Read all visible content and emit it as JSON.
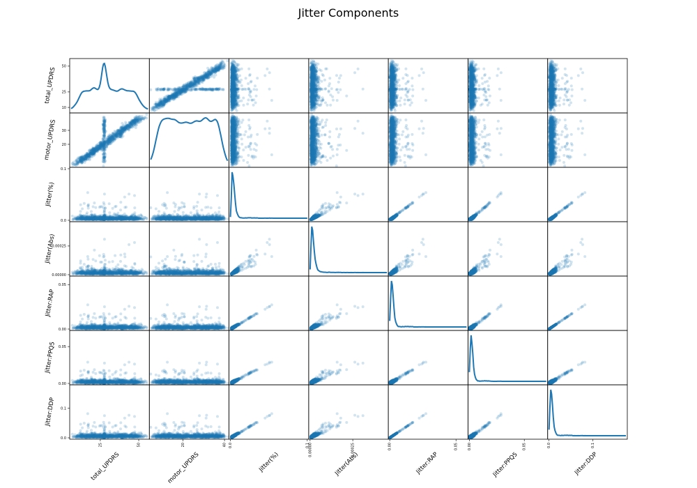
{
  "chart_data": {
    "type": "scatter-matrix",
    "title": "Jitter Components",
    "variables": [
      {
        "name": "total_UPDRS",
        "range": [
          6,
          56
        ],
        "yticks": [
          {
            "v": 10,
            "label": "10"
          },
          {
            "v": 25,
            "label": "25"
          },
          {
            "v": 50,
            "label": "50"
          }
        ],
        "xticks": [
          {
            "v": 25,
            "label": "25"
          },
          {
            "v": 50,
            "label": "50"
          }
        ]
      },
      {
        "name": "motor_UPDRS",
        "range": [
          4.5,
          41.5
        ],
        "yticks": [
          {
            "v": 20,
            "label": "20"
          },
          {
            "v": 30,
            "label": "30"
          }
        ],
        "xticks": [
          {
            "v": 20,
            "label": "20"
          },
          {
            "v": 40,
            "label": "40"
          }
        ]
      },
      {
        "name": "Jitter(%)",
        "range": [
          0,
          0.1
        ],
        "yticks": [
          {
            "v": 0.0,
            "label": "0.0"
          },
          {
            "v": 0.1,
            "label": "0.1"
          }
        ],
        "xticks": [
          {
            "v": 0.0,
            "label": "0.0"
          },
          {
            "v": 0.1,
            "label": "0.1"
          }
        ]
      },
      {
        "name": "Jitter(Abs)",
        "range": [
          0,
          0.00045
        ],
        "yticks": [
          {
            "v": 0.0,
            "label": "0.00000"
          },
          {
            "v": 0.00025,
            "label": "0.00025"
          }
        ],
        "xticks": [
          {
            "v": 0.0,
            "label": "0.00000"
          },
          {
            "v": 0.00025,
            "label": "0.00025"
          }
        ]
      },
      {
        "name": "Jitter:RAP",
        "range": [
          0,
          0.058
        ],
        "yticks": [
          {
            "v": 0.0,
            "label": "0.00"
          },
          {
            "v": 0.05,
            "label": "0.05"
          }
        ],
        "xticks": [
          {
            "v": 0.0,
            "label": "0.00"
          },
          {
            "v": 0.05,
            "label": "0.05"
          }
        ]
      },
      {
        "name": "Jitter:PPQ5",
        "range": [
          0,
          0.07
        ],
        "yticks": [
          {
            "v": 0.0,
            "label": "0.00"
          },
          {
            "v": 0.05,
            "label": "0.05"
          }
        ],
        "xticks": [
          {
            "v": 0.0,
            "label": "0.00"
          },
          {
            "v": 0.05,
            "label": "0.05"
          }
        ]
      },
      {
        "name": "Jitter:DDP",
        "range": [
          0,
          0.175
        ],
        "yticks": [
          {
            "v": 0.0,
            "label": "0.0"
          },
          {
            "v": 0.1,
            "label": "0.1"
          }
        ],
        "xticks": [
          {
            "v": 0.0,
            "label": "0.0"
          },
          {
            "v": 0.1,
            "label": "0.1"
          }
        ]
      }
    ],
    "diagonal": "kde",
    "marker_color": "#1f77b4",
    "marker_alpha": 0.2,
    "grid": false,
    "legend": "none"
  }
}
